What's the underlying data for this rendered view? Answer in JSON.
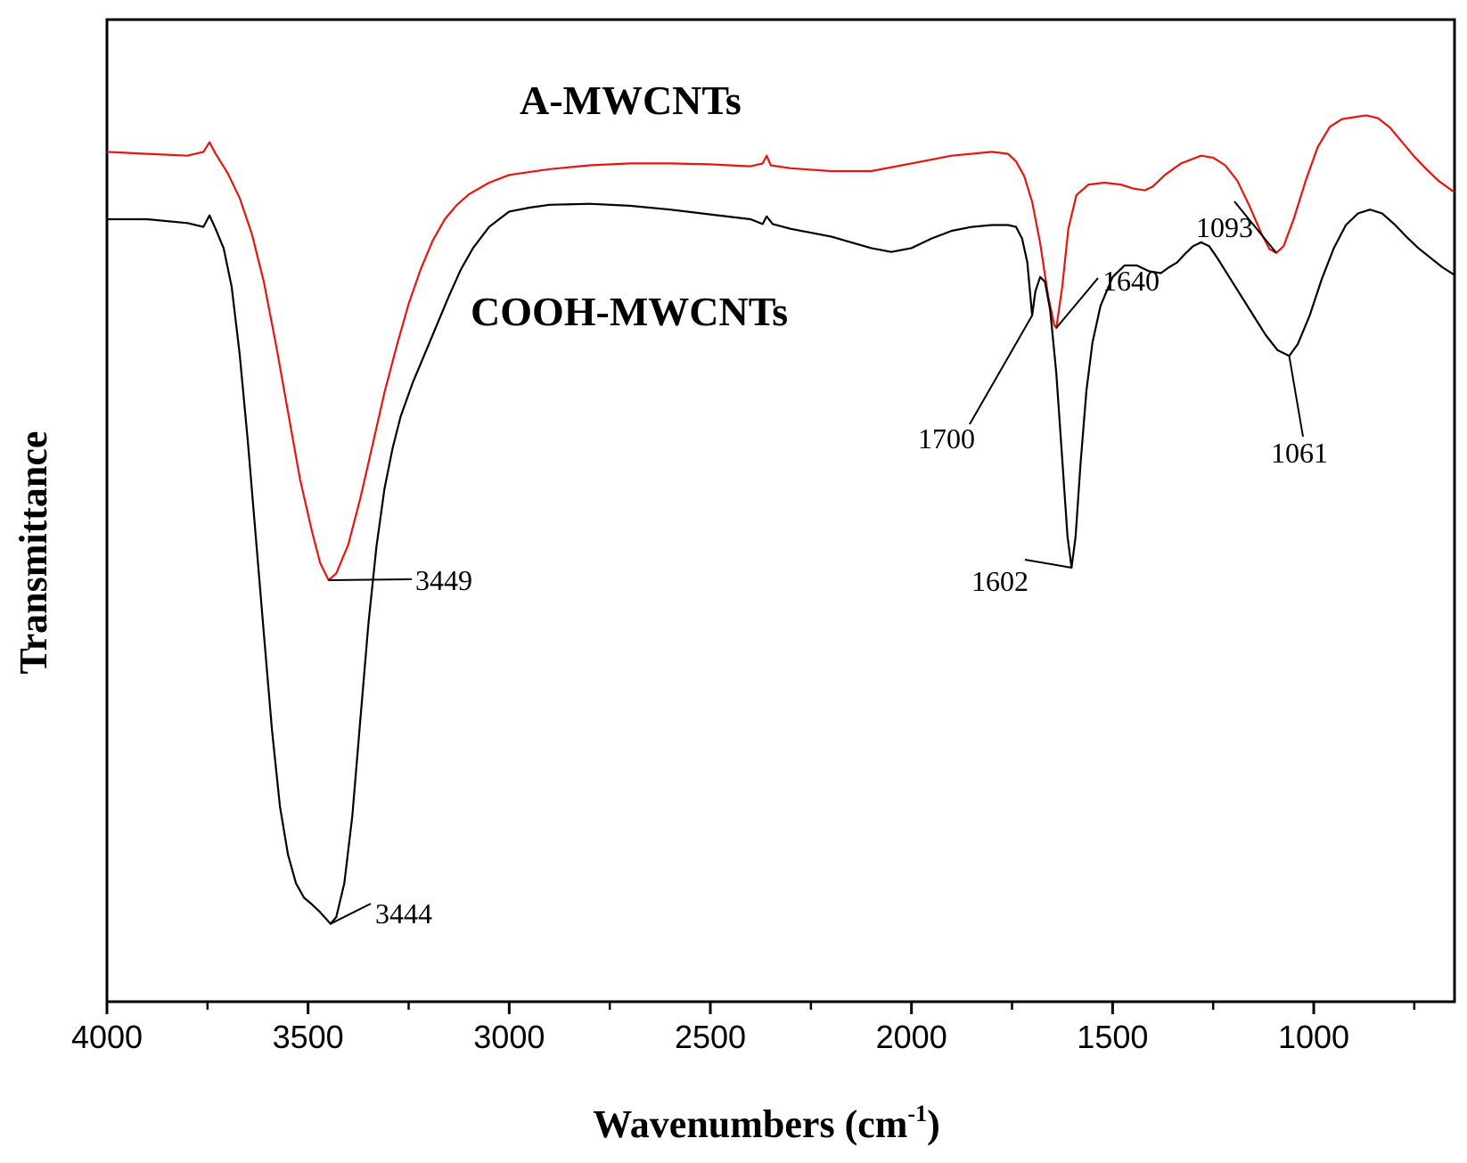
{
  "chart_data": {
    "type": "line",
    "xlabel_main": "Wavenumbers (cm",
    "xlabel_sup": "-1",
    "xlabel_close": ")",
    "ylabel": "Transmittance",
    "xlim": [
      4000,
      650
    ],
    "x_reversed": true,
    "grid": false,
    "x_ticks": [
      4000,
      3500,
      3000,
      2500,
      2000,
      1500,
      1000
    ],
    "x_minor_ticks": [
      3750,
      3250,
      2750,
      2250,
      1750,
      1250,
      750
    ],
    "x_tick_labels": [
      "4000",
      "3500",
      "3000",
      "2500",
      "2000",
      "1500",
      "1000"
    ],
    "series": [
      {
        "name": "A-MWCNTs",
        "color": "#e8140f",
        "points": [
          [
            4000,
            0.87
          ],
          [
            3900,
            0.868
          ],
          [
            3800,
            0.866
          ],
          [
            3760,
            0.87
          ],
          [
            3745,
            0.88
          ],
          [
            3730,
            0.868
          ],
          [
            3700,
            0.848
          ],
          [
            3670,
            0.822
          ],
          [
            3640,
            0.785
          ],
          [
            3610,
            0.735
          ],
          [
            3580,
            0.67
          ],
          [
            3550,
            0.6
          ],
          [
            3520,
            0.53
          ],
          [
            3490,
            0.475
          ],
          [
            3470,
            0.443
          ],
          [
            3449,
            0.425
          ],
          [
            3430,
            0.432
          ],
          [
            3400,
            0.462
          ],
          [
            3370,
            0.51
          ],
          [
            3340,
            0.565
          ],
          [
            3310,
            0.62
          ],
          [
            3280,
            0.668
          ],
          [
            3250,
            0.712
          ],
          [
            3220,
            0.748
          ],
          [
            3190,
            0.778
          ],
          [
            3160,
            0.8
          ],
          [
            3130,
            0.815
          ],
          [
            3100,
            0.826
          ],
          [
            3050,
            0.838
          ],
          [
            3000,
            0.846
          ],
          [
            2900,
            0.852
          ],
          [
            2800,
            0.856
          ],
          [
            2700,
            0.858
          ],
          [
            2600,
            0.858
          ],
          [
            2500,
            0.857
          ],
          [
            2400,
            0.855
          ],
          [
            2370,
            0.858
          ],
          [
            2360,
            0.866
          ],
          [
            2350,
            0.856
          ],
          [
            2300,
            0.853
          ],
          [
            2200,
            0.85
          ],
          [
            2100,
            0.85
          ],
          [
            2000,
            0.858
          ],
          [
            1900,
            0.866
          ],
          [
            1800,
            0.87
          ],
          [
            1760,
            0.868
          ],
          [
            1740,
            0.86
          ],
          [
            1720,
            0.845
          ],
          [
            1700,
            0.818
          ],
          [
            1680,
            0.775
          ],
          [
            1660,
            0.72
          ],
          [
            1645,
            0.69
          ],
          [
            1640,
            0.687
          ],
          [
            1625,
            0.73
          ],
          [
            1610,
            0.79
          ],
          [
            1590,
            0.825
          ],
          [
            1560,
            0.836
          ],
          [
            1520,
            0.838
          ],
          [
            1480,
            0.836
          ],
          [
            1450,
            0.832
          ],
          [
            1420,
            0.83
          ],
          [
            1400,
            0.834
          ],
          [
            1370,
            0.846
          ],
          [
            1330,
            0.858
          ],
          [
            1280,
            0.866
          ],
          [
            1250,
            0.864
          ],
          [
            1220,
            0.856
          ],
          [
            1190,
            0.84
          ],
          [
            1160,
            0.814
          ],
          [
            1130,
            0.785
          ],
          [
            1110,
            0.769
          ],
          [
            1093,
            0.765
          ],
          [
            1075,
            0.772
          ],
          [
            1050,
            0.8
          ],
          [
            1020,
            0.84
          ],
          [
            990,
            0.875
          ],
          [
            960,
            0.896
          ],
          [
            930,
            0.904
          ],
          [
            900,
            0.906
          ],
          [
            870,
            0.908
          ],
          [
            840,
            0.905
          ],
          [
            810,
            0.895
          ],
          [
            780,
            0.88
          ],
          [
            750,
            0.865
          ],
          [
            720,
            0.852
          ],
          [
            690,
            0.84
          ],
          [
            650,
            0.828
          ]
        ]
      },
      {
        "name": "COOH-MWCNTs",
        "color": "#000000",
        "points": [
          [
            4000,
            0.8
          ],
          [
            3900,
            0.8
          ],
          [
            3800,
            0.796
          ],
          [
            3760,
            0.792
          ],
          [
            3745,
            0.804
          ],
          [
            3730,
            0.79
          ],
          [
            3710,
            0.77
          ],
          [
            3690,
            0.73
          ],
          [
            3670,
            0.66
          ],
          [
            3650,
            0.57
          ],
          [
            3630,
            0.47
          ],
          [
            3610,
            0.37
          ],
          [
            3590,
            0.27
          ],
          [
            3570,
            0.19
          ],
          [
            3550,
            0.14
          ],
          [
            3530,
            0.11
          ],
          [
            3510,
            0.095
          ],
          [
            3490,
            0.088
          ],
          [
            3470,
            0.08
          ],
          [
            3455,
            0.073
          ],
          [
            3444,
            0.068
          ],
          [
            3430,
            0.075
          ],
          [
            3410,
            0.11
          ],
          [
            3390,
            0.18
          ],
          [
            3370,
            0.28
          ],
          [
            3350,
            0.38
          ],
          [
            3330,
            0.46
          ],
          [
            3310,
            0.52
          ],
          [
            3290,
            0.562
          ],
          [
            3270,
            0.595
          ],
          [
            3240,
            0.63
          ],
          [
            3210,
            0.66
          ],
          [
            3180,
            0.69
          ],
          [
            3150,
            0.72
          ],
          [
            3120,
            0.748
          ],
          [
            3090,
            0.77
          ],
          [
            3050,
            0.792
          ],
          [
            3000,
            0.808
          ],
          [
            2950,
            0.812
          ],
          [
            2900,
            0.815
          ],
          [
            2800,
            0.816
          ],
          [
            2700,
            0.814
          ],
          [
            2600,
            0.81
          ],
          [
            2500,
            0.805
          ],
          [
            2400,
            0.8
          ],
          [
            2370,
            0.795
          ],
          [
            2360,
            0.803
          ],
          [
            2345,
            0.795
          ],
          [
            2300,
            0.79
          ],
          [
            2200,
            0.782
          ],
          [
            2100,
            0.77
          ],
          [
            2050,
            0.766
          ],
          [
            2000,
            0.77
          ],
          [
            1950,
            0.78
          ],
          [
            1900,
            0.788
          ],
          [
            1850,
            0.792
          ],
          [
            1800,
            0.794
          ],
          [
            1760,
            0.794
          ],
          [
            1740,
            0.792
          ],
          [
            1725,
            0.78
          ],
          [
            1712,
            0.755
          ],
          [
            1700,
            0.7
          ],
          [
            1692,
            0.725
          ],
          [
            1680,
            0.74
          ],
          [
            1668,
            0.735
          ],
          [
            1655,
            0.705
          ],
          [
            1640,
            0.64
          ],
          [
            1625,
            0.55
          ],
          [
            1612,
            0.47
          ],
          [
            1602,
            0.438
          ],
          [
            1592,
            0.47
          ],
          [
            1580,
            0.545
          ],
          [
            1565,
            0.622
          ],
          [
            1550,
            0.672
          ],
          [
            1530,
            0.71
          ],
          [
            1500,
            0.74
          ],
          [
            1470,
            0.752
          ],
          [
            1440,
            0.752
          ],
          [
            1410,
            0.746
          ],
          [
            1380,
            0.744
          ],
          [
            1360,
            0.75
          ],
          [
            1340,
            0.755
          ],
          [
            1320,
            0.764
          ],
          [
            1300,
            0.772
          ],
          [
            1280,
            0.776
          ],
          [
            1260,
            0.772
          ],
          [
            1240,
            0.76
          ],
          [
            1210,
            0.74
          ],
          [
            1180,
            0.72
          ],
          [
            1150,
            0.7
          ],
          [
            1120,
            0.68
          ],
          [
            1090,
            0.664
          ],
          [
            1061,
            0.658
          ],
          [
            1040,
            0.67
          ],
          [
            1010,
            0.7
          ],
          [
            980,
            0.738
          ],
          [
            950,
            0.77
          ],
          [
            920,
            0.794
          ],
          [
            890,
            0.806
          ],
          [
            860,
            0.81
          ],
          [
            830,
            0.806
          ],
          [
            800,
            0.795
          ],
          [
            770,
            0.782
          ],
          [
            740,
            0.77
          ],
          [
            710,
            0.76
          ],
          [
            680,
            0.75
          ],
          [
            650,
            0.742
          ]
        ]
      }
    ],
    "annotations": [
      {
        "text": "A-MWCNTs",
        "role": "series-label",
        "series": 0
      },
      {
        "text": "COOH-MWCNTs",
        "role": "series-label",
        "series": 1
      },
      {
        "text": "3449",
        "x": 3449,
        "series": 0
      },
      {
        "text": "1640",
        "x": 1640,
        "series": 0
      },
      {
        "text": "1093",
        "x": 1093,
        "series": 0
      },
      {
        "text": "3444",
        "x": 3444,
        "series": 1
      },
      {
        "text": "1700",
        "x": 1700,
        "series": 1
      },
      {
        "text": "1602",
        "x": 1602,
        "series": 1
      },
      {
        "text": "1061",
        "x": 1061,
        "series": 1
      }
    ]
  }
}
